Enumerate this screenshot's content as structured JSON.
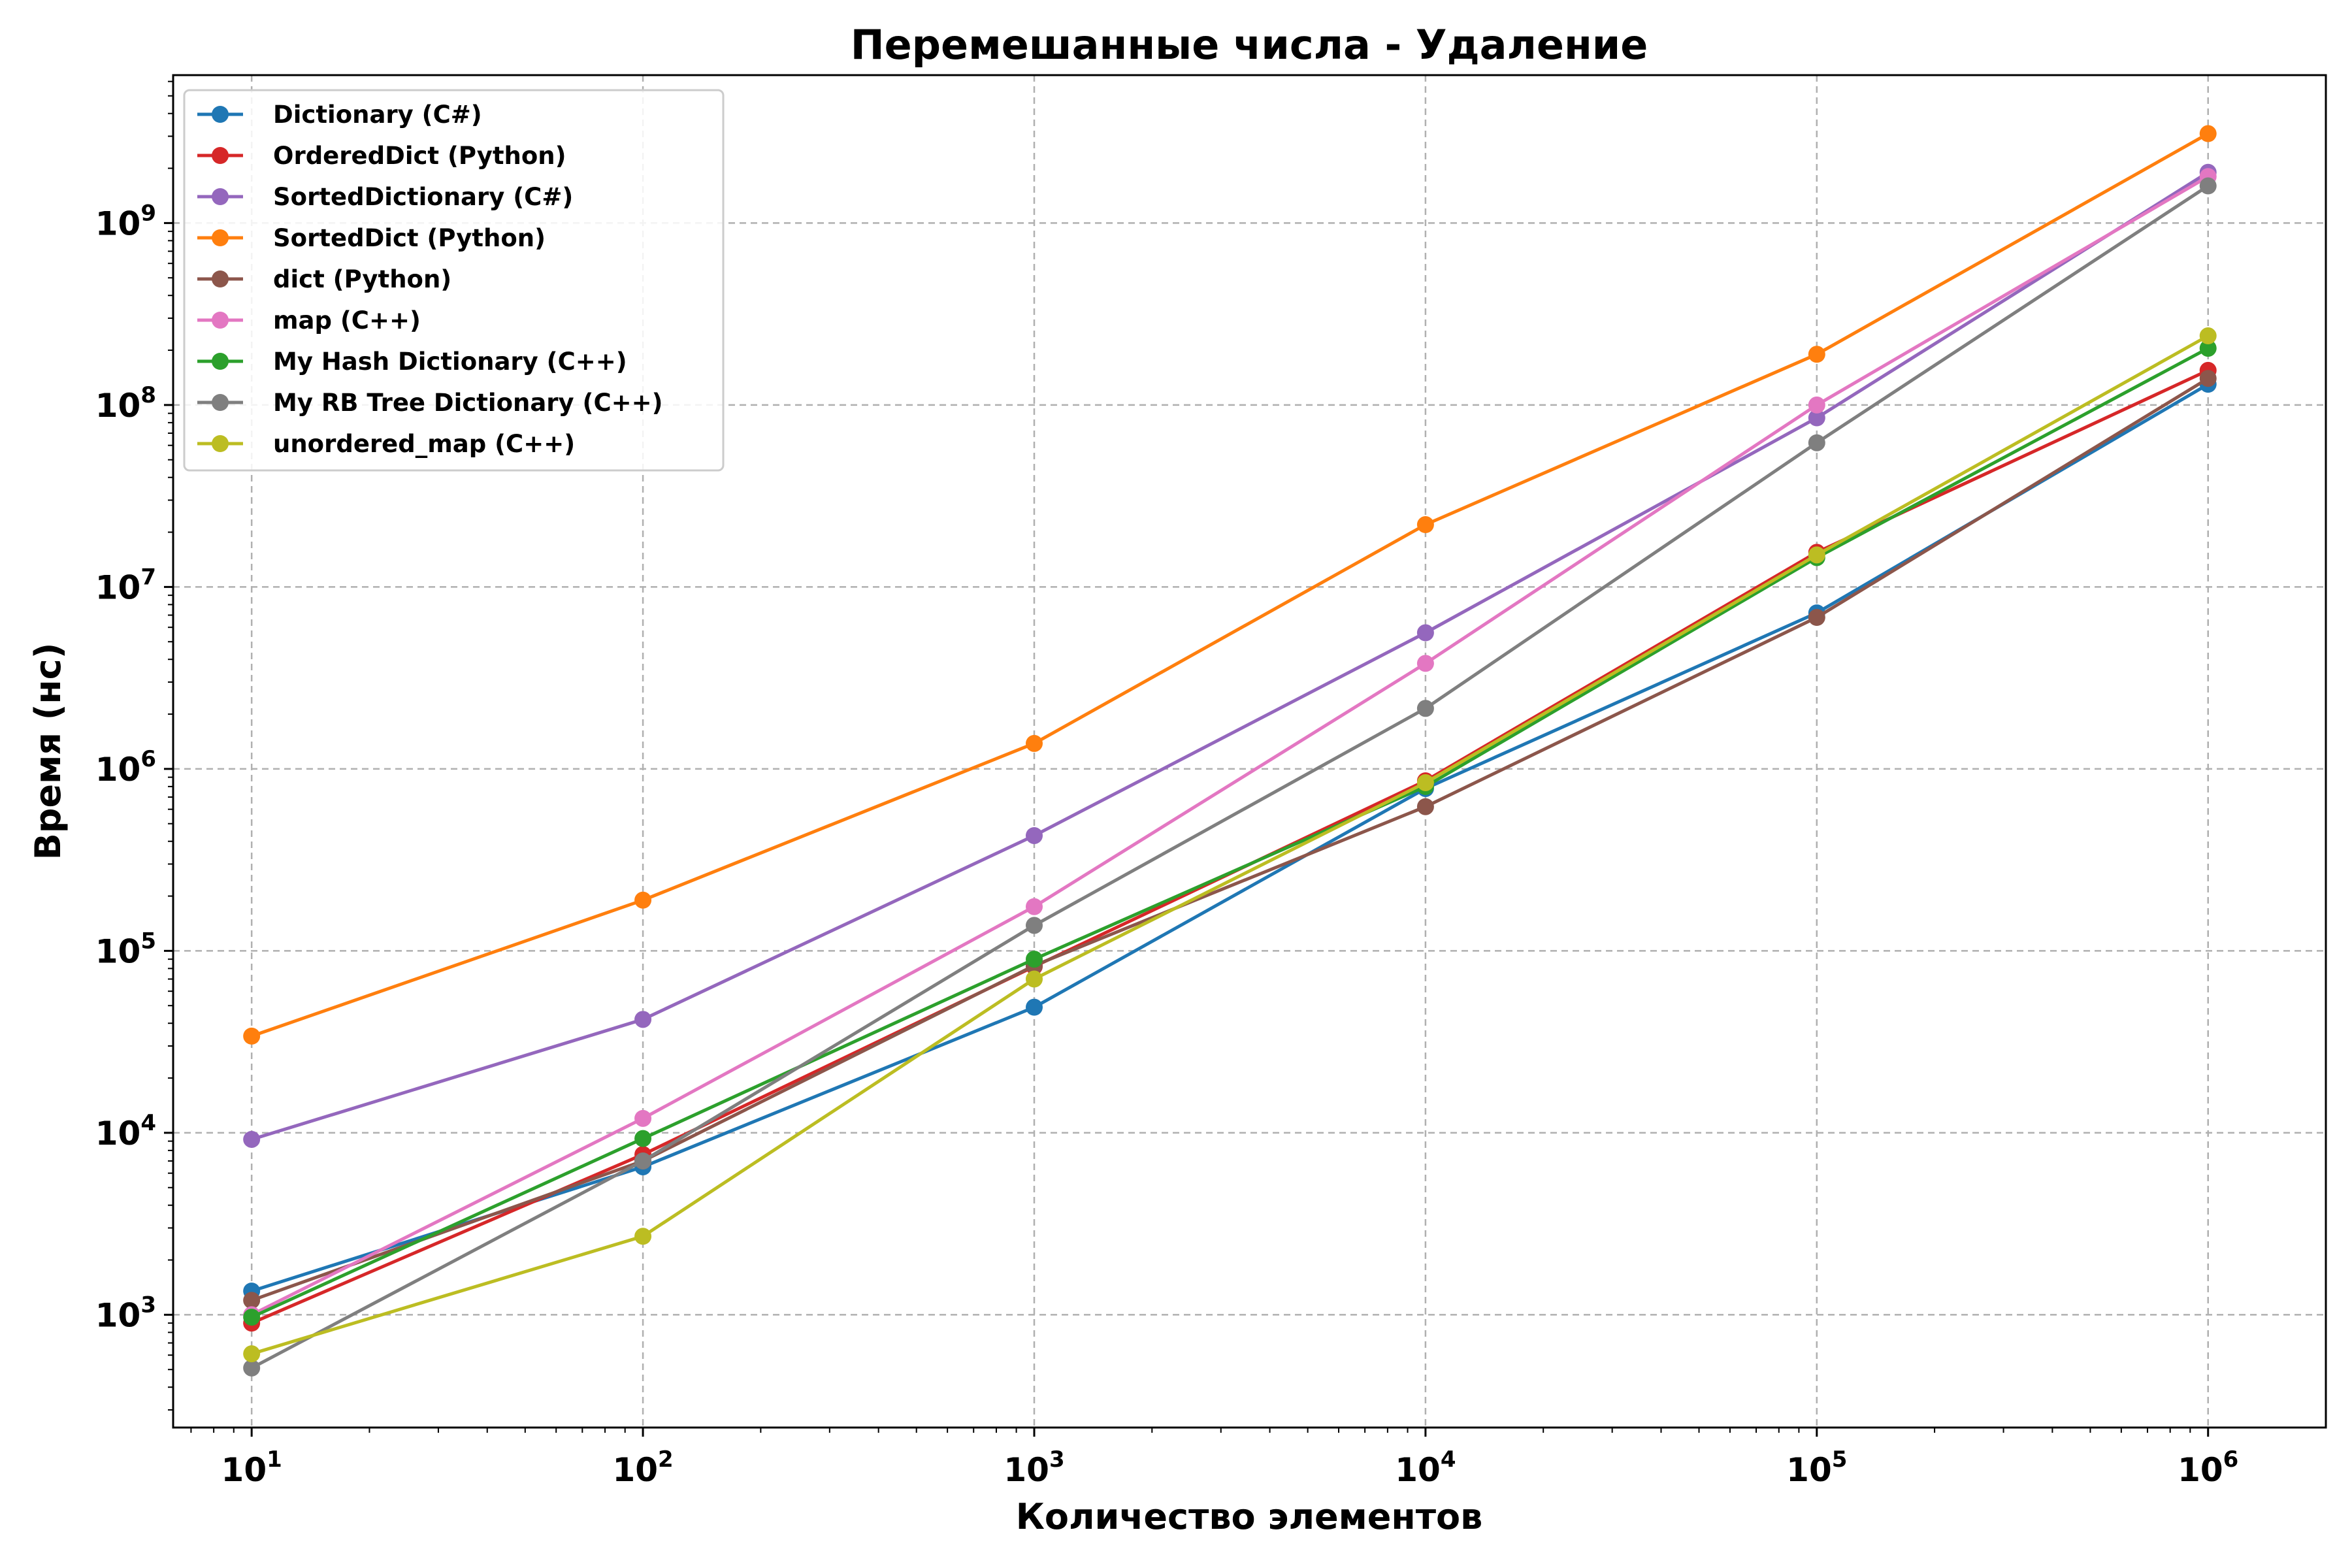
{
  "chart_data": {
    "type": "line",
    "title": "Перемешанные числа - Удаление",
    "xlabel": "Количество элементов",
    "ylabel": "Время (нс)",
    "xscale": "log",
    "yscale": "log",
    "xlim": [
      6.3,
      2000000
    ],
    "ylim": [
      240,
      6500000000
    ],
    "grid": true,
    "legend_position": "top-left",
    "x": [
      10,
      100,
      1000,
      10000,
      100000,
      1000000
    ],
    "x_ticks": [
      {
        "value": 10,
        "base": "10",
        "exp": "1"
      },
      {
        "value": 100,
        "base": "10",
        "exp": "2"
      },
      {
        "value": 1000,
        "base": "10",
        "exp": "3"
      },
      {
        "value": 10000,
        "base": "10",
        "exp": "4"
      },
      {
        "value": 100000,
        "base": "10",
        "exp": "5"
      },
      {
        "value": 1000000,
        "base": "10",
        "exp": "6"
      }
    ],
    "y_ticks": [
      {
        "value": 1000,
        "base": "10",
        "exp": "3"
      },
      {
        "value": 10000,
        "base": "10",
        "exp": "4"
      },
      {
        "value": 100000,
        "base": "10",
        "exp": "5"
      },
      {
        "value": 1000000,
        "base": "10",
        "exp": "6"
      },
      {
        "value": 10000000,
        "base": "10",
        "exp": "7"
      },
      {
        "value": 100000000,
        "base": "10",
        "exp": "8"
      },
      {
        "value": 1000000000,
        "base": "10",
        "exp": "9"
      }
    ],
    "series": [
      {
        "name": "Dictionary (C#)",
        "color": "#1f77b4",
        "values": [
          1350,
          6500,
          49000,
          780000,
          7200000,
          130000000
        ]
      },
      {
        "name": "OrderedDict (Python)",
        "color": "#d62728",
        "values": [
          900,
          7600,
          82000,
          860000,
          15500000,
          155000000
        ]
      },
      {
        "name": "SortedDictionary (C#)",
        "color": "#9467bd",
        "values": [
          9200,
          42000,
          430000,
          5600000,
          85000000,
          1900000000
        ]
      },
      {
        "name": "SortedDict (Python)",
        "color": "#ff7f0e",
        "values": [
          34000,
          190000,
          1380000,
          22000000,
          190000000,
          3100000000
        ]
      },
      {
        "name": "dict (Python)",
        "color": "#8c564b",
        "values": [
          1200,
          7000,
          83000,
          620000,
          6800000,
          140000000
        ]
      },
      {
        "name": "map (C++)",
        "color": "#e377c2",
        "values": [
          1000,
          12000,
          175000,
          3800000,
          100000000,
          1800000000
        ]
      },
      {
        "name": "My Hash Dictionary (C++)",
        "color": "#2ca02c",
        "values": [
          970,
          9300,
          90000,
          800000,
          14500000,
          205000000
        ]
      },
      {
        "name": "My RB Tree Dictionary (C++)",
        "color": "#7f7f7f",
        "values": [
          510,
          7000,
          138000,
          2150000,
          62000000,
          1600000000
        ]
      },
      {
        "name": "unordered_map (C++)",
        "color": "#bcbd22",
        "values": [
          610,
          2700,
          70000,
          840000,
          15000000,
          240000000
        ]
      }
    ]
  }
}
